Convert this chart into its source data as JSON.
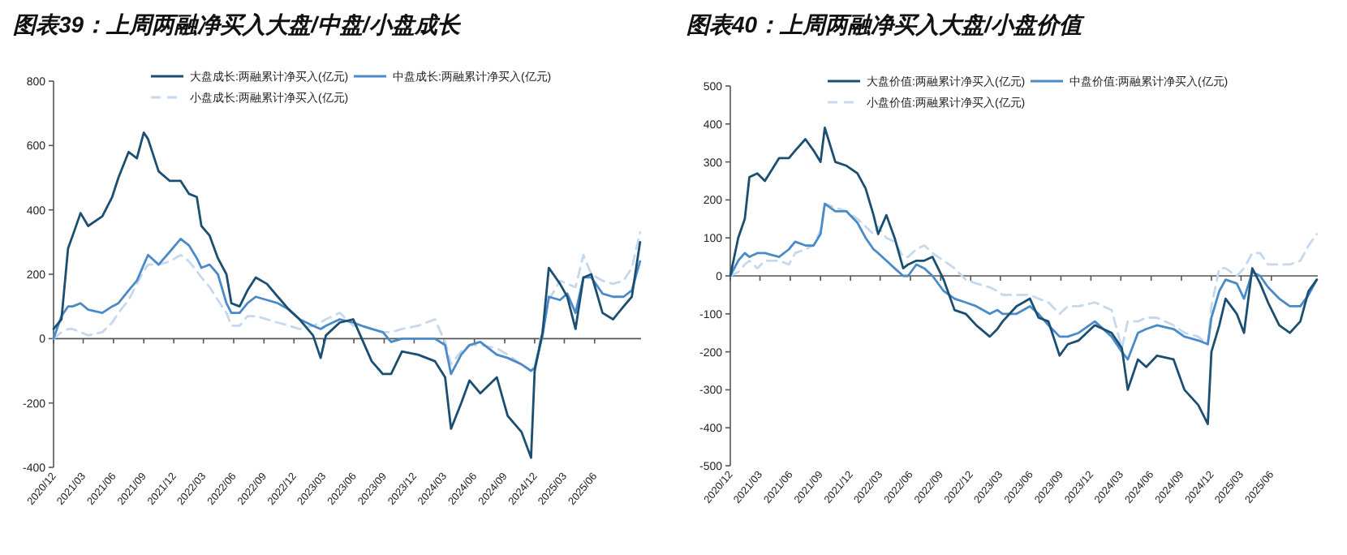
{
  "chart_data": [
    {
      "type": "line",
      "title": "图表39：上周两融净买入大盘/中盘/小盘成长",
      "legend": "top",
      "x": [
        "2020-12-01",
        "2020-12-25",
        "2021-01-14",
        "2021-01-28",
        "2021-02-21",
        "2021-03-16",
        "2021-04-28",
        "2021-05-28",
        "2021-06-16",
        "2021-07-17",
        "2021-08-11",
        "2021-09-01",
        "2021-09-14",
        "2021-10-16",
        "2021-11-19",
        "2021-12-22",
        "2022-01-16",
        "2022-02-09",
        "2022-02-23",
        "2022-03-20",
        "2022-04-14",
        "2022-05-10",
        "2022-05-25",
        "2022-06-19",
        "2022-07-13",
        "2022-08-07",
        "2022-09-10",
        "2022-10-13",
        "2022-11-16",
        "2022-12-18",
        "2023-01-28",
        "2023-02-20",
        "2023-03-08",
        "2023-04-19",
        "2023-05-30",
        "2023-06-25",
        "2023-07-25",
        "2023-08-28",
        "2023-09-22",
        "2023-10-25",
        "2023-12-13",
        "2024-02-02",
        "2024-03-04",
        "2024-03-22",
        "2024-04-22",
        "2024-05-17",
        "2024-06-19",
        "2024-08-08",
        "2024-09-10",
        "2024-10-22",
        "2024-11-20",
        "2024-12-01",
        "2024-12-25",
        "2025-01-13",
        "2025-02-16",
        "2025-03-10",
        "2025-04-04",
        "2025-04-28",
        "2025-05-22",
        "2025-06-25",
        "2025-07-27",
        "2025-08-28",
        "2025-09-22",
        "2025-10-17"
      ],
      "xlim": [
        "2020-12-01",
        "2025-10-20"
      ],
      "xticks": [
        {
          "value": "2020-12-01",
          "label": "2020/12"
        },
        {
          "value": "2021-03-01",
          "label": "2021/03"
        },
        {
          "value": "2021-06-01",
          "label": "2021/06"
        },
        {
          "value": "2021-09-01",
          "label": "2021/09"
        },
        {
          "value": "2021-12-01",
          "label": "2021/12"
        },
        {
          "value": "2022-03-01",
          "label": "2022/03"
        },
        {
          "value": "2022-06-01",
          "label": "2022/06"
        },
        {
          "value": "2022-09-01",
          "label": "2022/09"
        },
        {
          "value": "2022-12-01",
          "label": "2022/12"
        },
        {
          "value": "2023-03-01",
          "label": "2023/03"
        },
        {
          "value": "2023-06-01",
          "label": "2023/06"
        },
        {
          "value": "2023-09-01",
          "label": "2023/09"
        },
        {
          "value": "2023-12-01",
          "label": "2023/12"
        },
        {
          "value": "2024-03-01",
          "label": "2024/03"
        },
        {
          "value": "2024-06-01",
          "label": "2024/06"
        },
        {
          "value": "2024-09-01",
          "label": "2024/09"
        },
        {
          "value": "2024-12-01",
          "label": "2024/12"
        },
        {
          "value": "2025-03-01",
          "label": "2025/03"
        },
        {
          "value": "2025-06-01",
          "label": "2025/06"
        }
      ],
      "ylim": [
        -400,
        800
      ],
      "yticks": [
        -400,
        -200,
        0,
        200,
        400,
        600,
        800
      ],
      "series": [
        {
          "name": "大盘成长:两融累计净买入(亿元)",
          "color": "#1b4f72",
          "line_style": "solid",
          "values": [
            30,
            60,
            280,
            320,
            390,
            350,
            380,
            440,
            500,
            580,
            560,
            640,
            620,
            520,
            490,
            490,
            450,
            440,
            350,
            320,
            250,
            200,
            110,
            100,
            150,
            190,
            170,
            130,
            90,
            60,
            10,
            -60,
            10,
            50,
            60,
            0,
            -70,
            -110,
            -110,
            -40,
            -50,
            -70,
            -120,
            -280,
            -200,
            -130,
            -170,
            -120,
            -240,
            -290,
            -370,
            -100,
            20,
            220,
            170,
            130,
            30,
            190,
            200,
            80,
            60,
            100,
            130,
            300
          ]
        },
        {
          "name": "中盘成长:两融累计净买入(亿元)",
          "color": "#4a8ac8",
          "line_style": "solid",
          "values": [
            0,
            70,
            100,
            100,
            110,
            90,
            80,
            100,
            110,
            150,
            180,
            230,
            260,
            230,
            270,
            310,
            290,
            250,
            220,
            230,
            200,
            110,
            80,
            80,
            110,
            130,
            120,
            110,
            90,
            60,
            40,
            30,
            40,
            60,
            50,
            40,
            30,
            20,
            -10,
            0,
            0,
            0,
            -20,
            -110,
            -50,
            -20,
            -10,
            -50,
            -60,
            -80,
            -100,
            -90,
            10,
            130,
            120,
            140,
            80,
            190,
            190,
            140,
            130,
            130,
            150,
            240
          ]
        },
        {
          "name": "小盘成长:两融累计净买入(亿元)",
          "color": "#c5d8ee",
          "line_style": "dashed",
          "values": [
            0,
            20,
            30,
            30,
            20,
            10,
            20,
            50,
            80,
            120,
            170,
            210,
            230,
            230,
            240,
            260,
            240,
            210,
            190,
            160,
            120,
            80,
            40,
            40,
            70,
            70,
            60,
            50,
            40,
            30,
            40,
            50,
            60,
            80,
            40,
            40,
            30,
            20,
            20,
            30,
            40,
            60,
            -10,
            -80,
            -40,
            -20,
            -20,
            -30,
            -50,
            -80,
            -100,
            -90,
            30,
            120,
            180,
            170,
            160,
            260,
            200,
            180,
            170,
            180,
            220,
            330
          ]
        }
      ]
    },
    {
      "type": "line",
      "title": "图表40：上周两融净买入大盘/小盘价值",
      "legend": "top",
      "x": [
        "2020-12-01",
        "2020-12-25",
        "2021-01-14",
        "2021-01-28",
        "2021-02-21",
        "2021-03-16",
        "2021-04-28",
        "2021-05-28",
        "2021-06-16",
        "2021-07-17",
        "2021-08-11",
        "2021-09-01",
        "2021-09-14",
        "2021-10-16",
        "2021-11-19",
        "2021-12-22",
        "2022-01-16",
        "2022-02-09",
        "2022-02-23",
        "2022-03-20",
        "2022-04-14",
        "2022-05-10",
        "2022-05-25",
        "2022-06-19",
        "2022-07-13",
        "2022-08-07",
        "2022-09-10",
        "2022-10-13",
        "2022-11-16",
        "2022-12-18",
        "2023-01-28",
        "2023-02-20",
        "2023-03-08",
        "2023-04-19",
        "2023-05-30",
        "2023-06-25",
        "2023-07-25",
        "2023-08-28",
        "2023-09-22",
        "2023-10-25",
        "2023-12-13",
        "2024-02-02",
        "2024-03-04",
        "2024-03-22",
        "2024-04-22",
        "2024-05-17",
        "2024-06-19",
        "2024-08-08",
        "2024-09-10",
        "2024-10-22",
        "2024-11-20",
        "2024-12-01",
        "2024-12-25",
        "2025-01-13",
        "2025-02-16",
        "2025-03-10",
        "2025-04-04",
        "2025-04-28",
        "2025-05-22",
        "2025-06-25",
        "2025-07-27",
        "2025-08-28",
        "2025-09-22",
        "2025-10-17"
      ],
      "xlim": [
        "2020-12-01",
        "2025-10-20"
      ],
      "xticks": [
        {
          "value": "2020-12-01",
          "label": "2020/12"
        },
        {
          "value": "2021-03-01",
          "label": "2021/03"
        },
        {
          "value": "2021-06-01",
          "label": "2021/06"
        },
        {
          "value": "2021-09-01",
          "label": "2021/09"
        },
        {
          "value": "2021-12-01",
          "label": "2021/12"
        },
        {
          "value": "2022-03-01",
          "label": "2022/03"
        },
        {
          "value": "2022-06-01",
          "label": "2022/06"
        },
        {
          "value": "2022-09-01",
          "label": "2022/09"
        },
        {
          "value": "2022-12-01",
          "label": "2022/12"
        },
        {
          "value": "2023-03-01",
          "label": "2023/03"
        },
        {
          "value": "2023-06-01",
          "label": "2023/06"
        },
        {
          "value": "2023-09-01",
          "label": "2023/09"
        },
        {
          "value": "2023-12-01",
          "label": "2023/12"
        },
        {
          "value": "2024-03-01",
          "label": "2024/03"
        },
        {
          "value": "2024-06-01",
          "label": "2024/06"
        },
        {
          "value": "2024-09-01",
          "label": "2024/09"
        },
        {
          "value": "2024-12-01",
          "label": "2024/12"
        },
        {
          "value": "2025-03-01",
          "label": "2025/03"
        },
        {
          "value": "2025-06-01",
          "label": "2025/06"
        }
      ],
      "ylim": [
        -500,
        500
      ],
      "yticks": [
        -500,
        -400,
        -300,
        -200,
        -100,
        0,
        100,
        200,
        300,
        400,
        500
      ],
      "series": [
        {
          "name": "大盘价值:两融累计净买入(亿元)",
          "color": "#1b4f72",
          "line_style": "solid",
          "values": [
            0,
            100,
            150,
            260,
            270,
            250,
            310,
            310,
            330,
            360,
            330,
            300,
            390,
            300,
            290,
            270,
            230,
            160,
            110,
            160,
            100,
            20,
            30,
            40,
            40,
            50,
            -10,
            -90,
            -100,
            -130,
            -160,
            -140,
            -120,
            -80,
            -60,
            -110,
            -120,
            -210,
            -180,
            -170,
            -130,
            -150,
            -190,
            -300,
            -220,
            -240,
            -210,
            -220,
            -300,
            -340,
            -390,
            -200,
            -130,
            -60,
            -100,
            -150,
            20,
            -20,
            -70,
            -130,
            -150,
            -120,
            -40,
            -10
          ]
        },
        {
          "name": "中盘价值:两融累计净买入(亿元)",
          "color": "#4a8ac8",
          "line_style": "solid",
          "values": [
            0,
            40,
            60,
            50,
            60,
            60,
            50,
            70,
            90,
            80,
            80,
            110,
            190,
            170,
            170,
            140,
            100,
            70,
            60,
            40,
            20,
            0,
            0,
            30,
            20,
            0,
            -40,
            -60,
            -70,
            -80,
            -100,
            -90,
            -100,
            -100,
            -80,
            -100,
            -130,
            -160,
            -160,
            -150,
            -120,
            -160,
            -200,
            -220,
            -150,
            -140,
            -130,
            -140,
            -160,
            -170,
            -180,
            -110,
            -40,
            -10,
            -20,
            -60,
            10,
            0,
            -30,
            -60,
            -80,
            -80,
            -50,
            -10
          ]
        },
        {
          "name": "小盘价值:两融累计净买入(亿元)",
          "color": "#c5d8ee",
          "line_style": "dashed",
          "values": [
            0,
            10,
            30,
            40,
            20,
            40,
            40,
            30,
            60,
            70,
            80,
            120,
            190,
            180,
            170,
            150,
            130,
            110,
            130,
            100,
            90,
            50,
            50,
            70,
            80,
            60,
            40,
            20,
            -10,
            -20,
            -30,
            -40,
            -50,
            -50,
            -50,
            -60,
            -70,
            -100,
            -80,
            -80,
            -70,
            -90,
            -190,
            -120,
            -120,
            -110,
            -110,
            -130,
            -150,
            -160,
            -180,
            -80,
            20,
            20,
            0,
            20,
            60,
            60,
            30,
            30,
            30,
            40,
            80,
            110
          ]
        }
      ]
    }
  ]
}
